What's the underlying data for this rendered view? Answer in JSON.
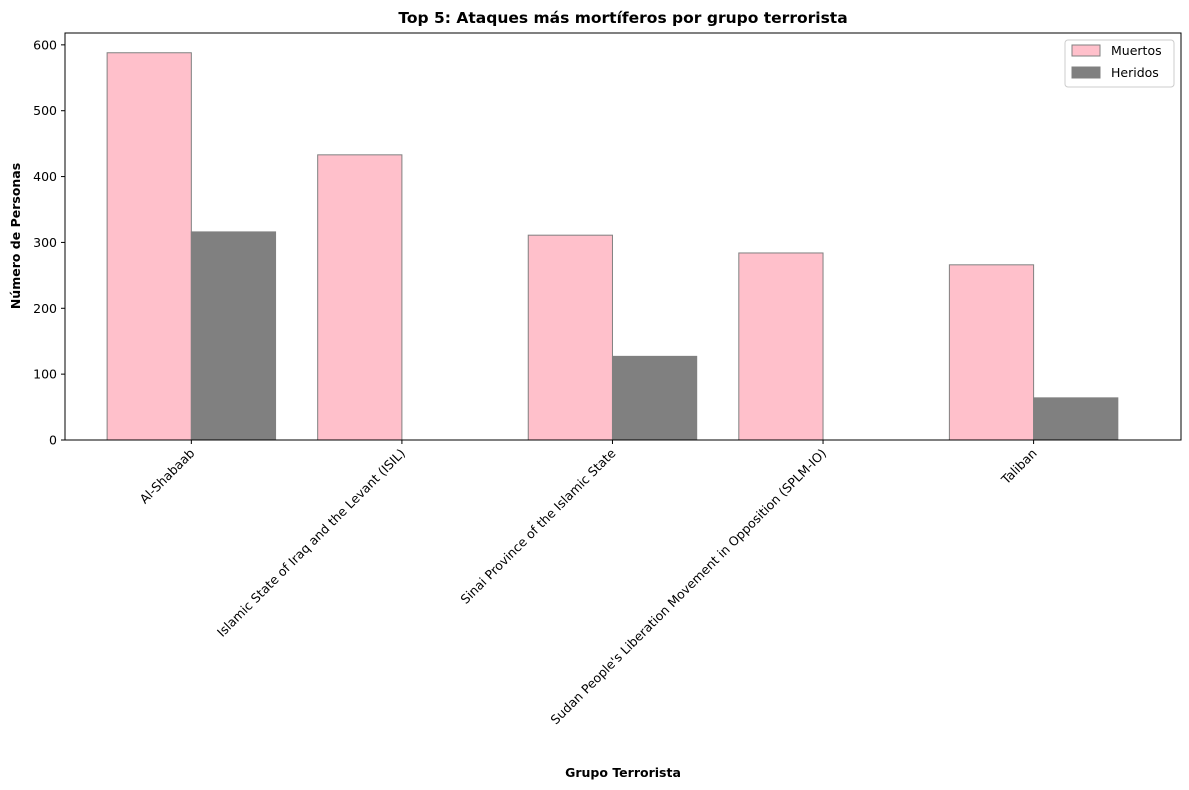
{
  "chart_data": {
    "type": "bar",
    "title": "Top 5: Ataques más mortíferos por grupo terrorista",
    "xlabel": "Grupo Terrorista",
    "ylabel": "Número de Personas",
    "ylim": [
      0,
      618
    ],
    "yticks": [
      0,
      100,
      200,
      300,
      400,
      500,
      600
    ],
    "categories": [
      "Al-Shabaab",
      "Islamic State of Iraq and the Levant (ISIL)",
      "Sinai Province of the Islamic State",
      "Sudan People's Liberation Movement in Opposition (SPLM-IO)",
      "Taliban"
    ],
    "series": [
      {
        "name": "Muertos",
        "values": [
          588,
          433,
          311,
          284,
          266
        ],
        "color": "#ffc0cb"
      },
      {
        "name": "Heridos",
        "values": [
          316,
          0,
          127,
          0,
          64
        ],
        "color": "#808080"
      }
    ],
    "bar_edge_color": "#808080",
    "grid": false,
    "legend_position": "top-right"
  }
}
